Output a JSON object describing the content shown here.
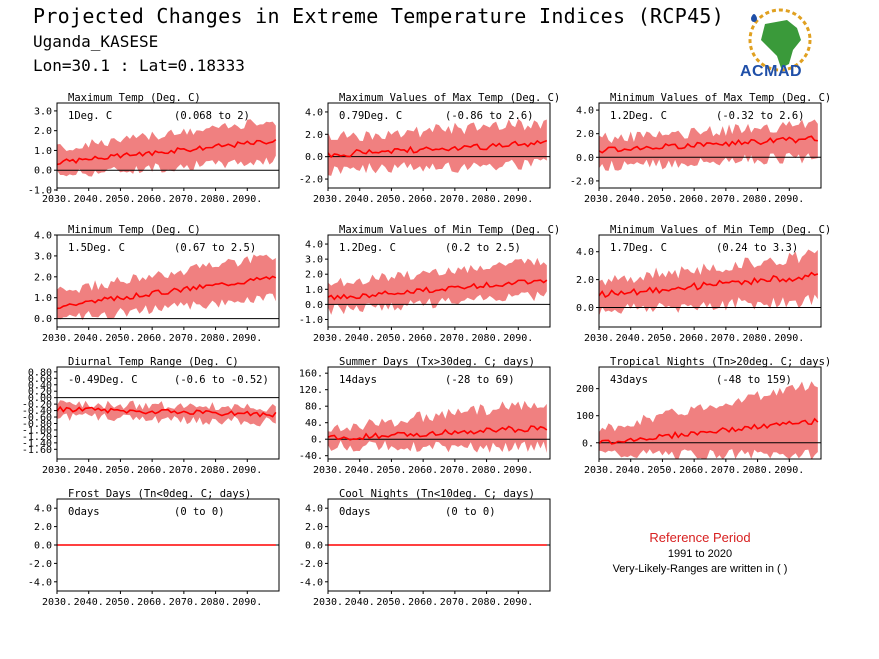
{
  "header": {
    "title": "Projected Changes in Extreme Temperature Indices (RCP45)",
    "subtitle": "Uganda_KASESE",
    "coords": "Lon=30.1 : Lat=0.18333",
    "logo_text": "ACMAD",
    "logo_icon": "africa-map-icon",
    "colors": {
      "logo_green": "#3a9a3a",
      "logo_blue": "#1f4fa8",
      "logo_orange": "#e0a020"
    }
  },
  "reference": {
    "title": "Reference Period",
    "years": "1991 to 2020",
    "note": "Very-Likely-Ranges are written in ( )"
  },
  "colors": {
    "band": "#f08080",
    "line": "#ff0000",
    "zero_line": "#000000"
  },
  "chart_data": [
    {
      "type": "area",
      "title": "Maximum Temp (Deg. C)",
      "value_label": "1Deg. C",
      "range_label": "(0.068 to 2)",
      "x": [
        2030,
        2099
      ],
      "xticks": [
        "2030.",
        "2040.",
        "2050.",
        "2060.",
        "2070.",
        "2080.",
        "2090."
      ],
      "ylim": [
        -0.9,
        3.4
      ],
      "yticks": [
        "3.0",
        "2.0",
        "1.0",
        "0.0",
        "-1.0"
      ],
      "ytick_values": [
        3,
        2,
        1,
        0,
        -1
      ],
      "series": {
        "mean_start": 0.4,
        "mean_end": 1.5,
        "low_start": -0.2,
        "low_end": 0.5,
        "high_start": 1.1,
        "high_end": 2.5,
        "noise": 0.25
      }
    },
    {
      "type": "area",
      "title": "Maximum Values of Max Temp (Deg. C)",
      "value_label": "0.79Deg. C",
      "range_label": "(-0.86 to 2.6)",
      "x": [
        2030,
        2099
      ],
      "xticks": [
        "2030.",
        "2040.",
        "2050.",
        "2060.",
        "2070.",
        "2080.",
        "2090."
      ],
      "ylim": [
        -2.8,
        4.8
      ],
      "yticks": [
        "4.0",
        "2.0",
        "0.0",
        "-2.0"
      ],
      "ytick_values": [
        4,
        2,
        0,
        -2
      ],
      "series": {
        "mean_start": 0.2,
        "mean_end": 1.2,
        "low_start": -1.2,
        "low_end": -0.6,
        "high_start": 1.8,
        "high_end": 3.0,
        "noise": 0.6
      }
    },
    {
      "type": "area",
      "title": "Minimum Values of Max Temp (Deg. C)",
      "value_label": "1.2Deg. C",
      "range_label": "(-0.32 to 2.6)",
      "x": [
        2030,
        2099
      ],
      "xticks": [
        "2030.",
        "2040.",
        "2050.",
        "2060.",
        "2070.",
        "2080.",
        "2090."
      ],
      "ylim": [
        -2.6,
        4.6
      ],
      "yticks": [
        "4.0",
        "2.0",
        "0.0",
        "-2.0"
      ],
      "ytick_values": [
        4,
        2,
        0,
        -2
      ],
      "series": {
        "mean_start": 0.6,
        "mean_end": 1.6,
        "low_start": -0.8,
        "low_end": 0.0,
        "high_start": 1.6,
        "high_end": 2.8,
        "noise": 0.5
      }
    },
    {
      "type": "area",
      "title": "Minimum Temp (Deg. C)",
      "value_label": "1.5Deg. C",
      "range_label": "(0.67 to 2.5)",
      "x": [
        2030,
        2099
      ],
      "xticks": [
        "2030.",
        "2040.",
        "2050.",
        "2060.",
        "2070.",
        "2080.",
        "2090."
      ],
      "ylim": [
        -0.4,
        4.0
      ],
      "yticks": [
        "4.0",
        "3.0",
        "2.0",
        "1.0",
        "0.0"
      ],
      "ytick_values": [
        4,
        3,
        2,
        1,
        0
      ],
      "series": {
        "mean_start": 0.6,
        "mean_end": 2.0,
        "low_start": 0.0,
        "low_end": 1.0,
        "high_start": 1.3,
        "high_end": 3.0,
        "noise": 0.25
      }
    },
    {
      "type": "area",
      "title": "Maximum Values of Min Temp (Deg. C)",
      "value_label": "1.2Deg. C",
      "range_label": "(0.2 to 2.5)",
      "x": [
        2030,
        2099
      ],
      "xticks": [
        "2030.",
        "2040.",
        "2050.",
        "2060.",
        "2070.",
        "2080.",
        "2090."
      ],
      "ylim": [
        -1.5,
        4.6
      ],
      "yticks": [
        "4.0",
        "3.0",
        "2.0",
        "1.0",
        "0.0",
        "-1.0"
      ],
      "ytick_values": [
        4,
        3,
        2,
        1,
        0,
        -1
      ],
      "series": {
        "mean_start": 0.4,
        "mean_end": 1.6,
        "low_start": -0.4,
        "low_end": 0.6,
        "high_start": 1.4,
        "high_end": 2.9,
        "noise": 0.35
      }
    },
    {
      "type": "area",
      "title": "Minimum Values of Min Temp (Deg. C)",
      "value_label": "1.7Deg. C",
      "range_label": "(0.24 to 3.3)",
      "x": [
        2030,
        2099
      ],
      "xticks": [
        "2030.",
        "2040.",
        "2050.",
        "2060.",
        "2070.",
        "2080.",
        "2090."
      ],
      "ylim": [
        -1.4,
        5.2
      ],
      "yticks": [
        "4.0",
        "2.0",
        "0.0"
      ],
      "ytick_values": [
        4,
        2,
        0
      ],
      "series": {
        "mean_start": 0.9,
        "mean_end": 2.3,
        "low_start": -0.2,
        "low_end": 0.5,
        "high_start": 1.9,
        "high_end": 3.8,
        "noise": 0.5
      }
    },
    {
      "type": "area",
      "title": "Diurnal Temp Range (Deg. C)",
      "value_label": "-0.49Deg. C",
      "range_label": "(-0.6 to -0.52)",
      "x": [
        2030,
        2099
      ],
      "xticks": [
        "2030.",
        "2040.",
        "2050.",
        "2060.",
        "2070.",
        "2080.",
        "2090."
      ],
      "ylim": [
        -1.9,
        0.95
      ],
      "yticks": [
        "0.80",
        "0.60",
        "0.40",
        "0.20",
        "0.00",
        "-0.20",
        "-0.40",
        "-0.60",
        "-0.80",
        "-1.00",
        "-1.20",
        "-1.40",
        "-1.60"
      ],
      "ytick_values": [
        0.8,
        0.6,
        0.4,
        0.2,
        0,
        -0.2,
        -0.4,
        -0.6,
        -0.8,
        -1.0,
        -1.2,
        -1.4,
        -1.6
      ],
      "series": {
        "mean_start": -0.35,
        "mean_end": -0.52,
        "low_start": -0.6,
        "low_end": -0.75,
        "high_start": -0.2,
        "high_end": -0.3,
        "noise": 0.15
      }
    },
    {
      "type": "area",
      "title": "Summer Days (Tx>30deg. C; days)",
      "value_label": "14days",
      "range_label": "(-28 to 69)",
      "x": [
        2030,
        2099
      ],
      "xticks": [
        "2030.",
        "2040.",
        "2050.",
        "2060.",
        "2070.",
        "2080.",
        "2090."
      ],
      "ylim": [
        -48,
        175
      ],
      "yticks": [
        "160.",
        "120.",
        "80.",
        "40.",
        "0.",
        "-40."
      ],
      "ytick_values": [
        160,
        120,
        80,
        40,
        0,
        -40
      ],
      "series": {
        "mean_start": 2,
        "mean_end": 28,
        "low_start": -15,
        "low_end": -20,
        "high_start": 25,
        "high_end": 90,
        "noise": 15
      }
    },
    {
      "type": "area",
      "title": "Tropical Nights (Tn>20deg. C; days)",
      "value_label": "43days",
      "range_label": "(-48 to 159)",
      "x": [
        2030,
        2099
      ],
      "xticks": [
        "2030.",
        "2040.",
        "2050.",
        "2060.",
        "2070.",
        "2080.",
        "2090."
      ],
      "ylim": [
        -60,
        280
      ],
      "yticks": [
        "200",
        "100",
        "0."
      ],
      "ytick_values": [
        200,
        100,
        0
      ],
      "series": {
        "mean_start": 0,
        "mean_end": 80,
        "low_start": -40,
        "low_end": -45,
        "high_start": 50,
        "high_end": 220,
        "noise": 20
      }
    },
    {
      "type": "area",
      "title": "Frost Days (Tn<0deg. C; days)",
      "value_label": "0days",
      "range_label": "(0 to 0)",
      "x": [
        2030,
        2099
      ],
      "xticks": [
        "2030.",
        "2040.",
        "2050.",
        "2060.",
        "2070.",
        "2080.",
        "2090."
      ],
      "ylim": [
        -5,
        5
      ],
      "yticks": [
        "4.0",
        "2.0",
        "0.0",
        "-2.0",
        "-4.0"
      ],
      "ytick_values": [
        4,
        2,
        0,
        -2,
        -4
      ],
      "series": {
        "mean_start": 0,
        "mean_end": 0,
        "low_start": 0,
        "low_end": 0,
        "high_start": 0,
        "high_end": 0,
        "noise": 0
      }
    },
    {
      "type": "area",
      "title": "Cool Nights (Tn<10deg. C; days)",
      "value_label": "0days",
      "range_label": "(0 to 0)",
      "x": [
        2030,
        2099
      ],
      "xticks": [
        "2030.",
        "2040.",
        "2050.",
        "2060.",
        "2070.",
        "2080.",
        "2090."
      ],
      "ylim": [
        -5,
        5
      ],
      "yticks": [
        "4.0",
        "2.0",
        "0.0",
        "-2.0",
        "-4.0"
      ],
      "ytick_values": [
        4,
        2,
        0,
        -2,
        -4
      ],
      "series": {
        "mean_start": 0,
        "mean_end": 0,
        "low_start": 0,
        "low_end": 0,
        "high_start": 0,
        "high_end": 0,
        "noise": 0
      }
    }
  ]
}
